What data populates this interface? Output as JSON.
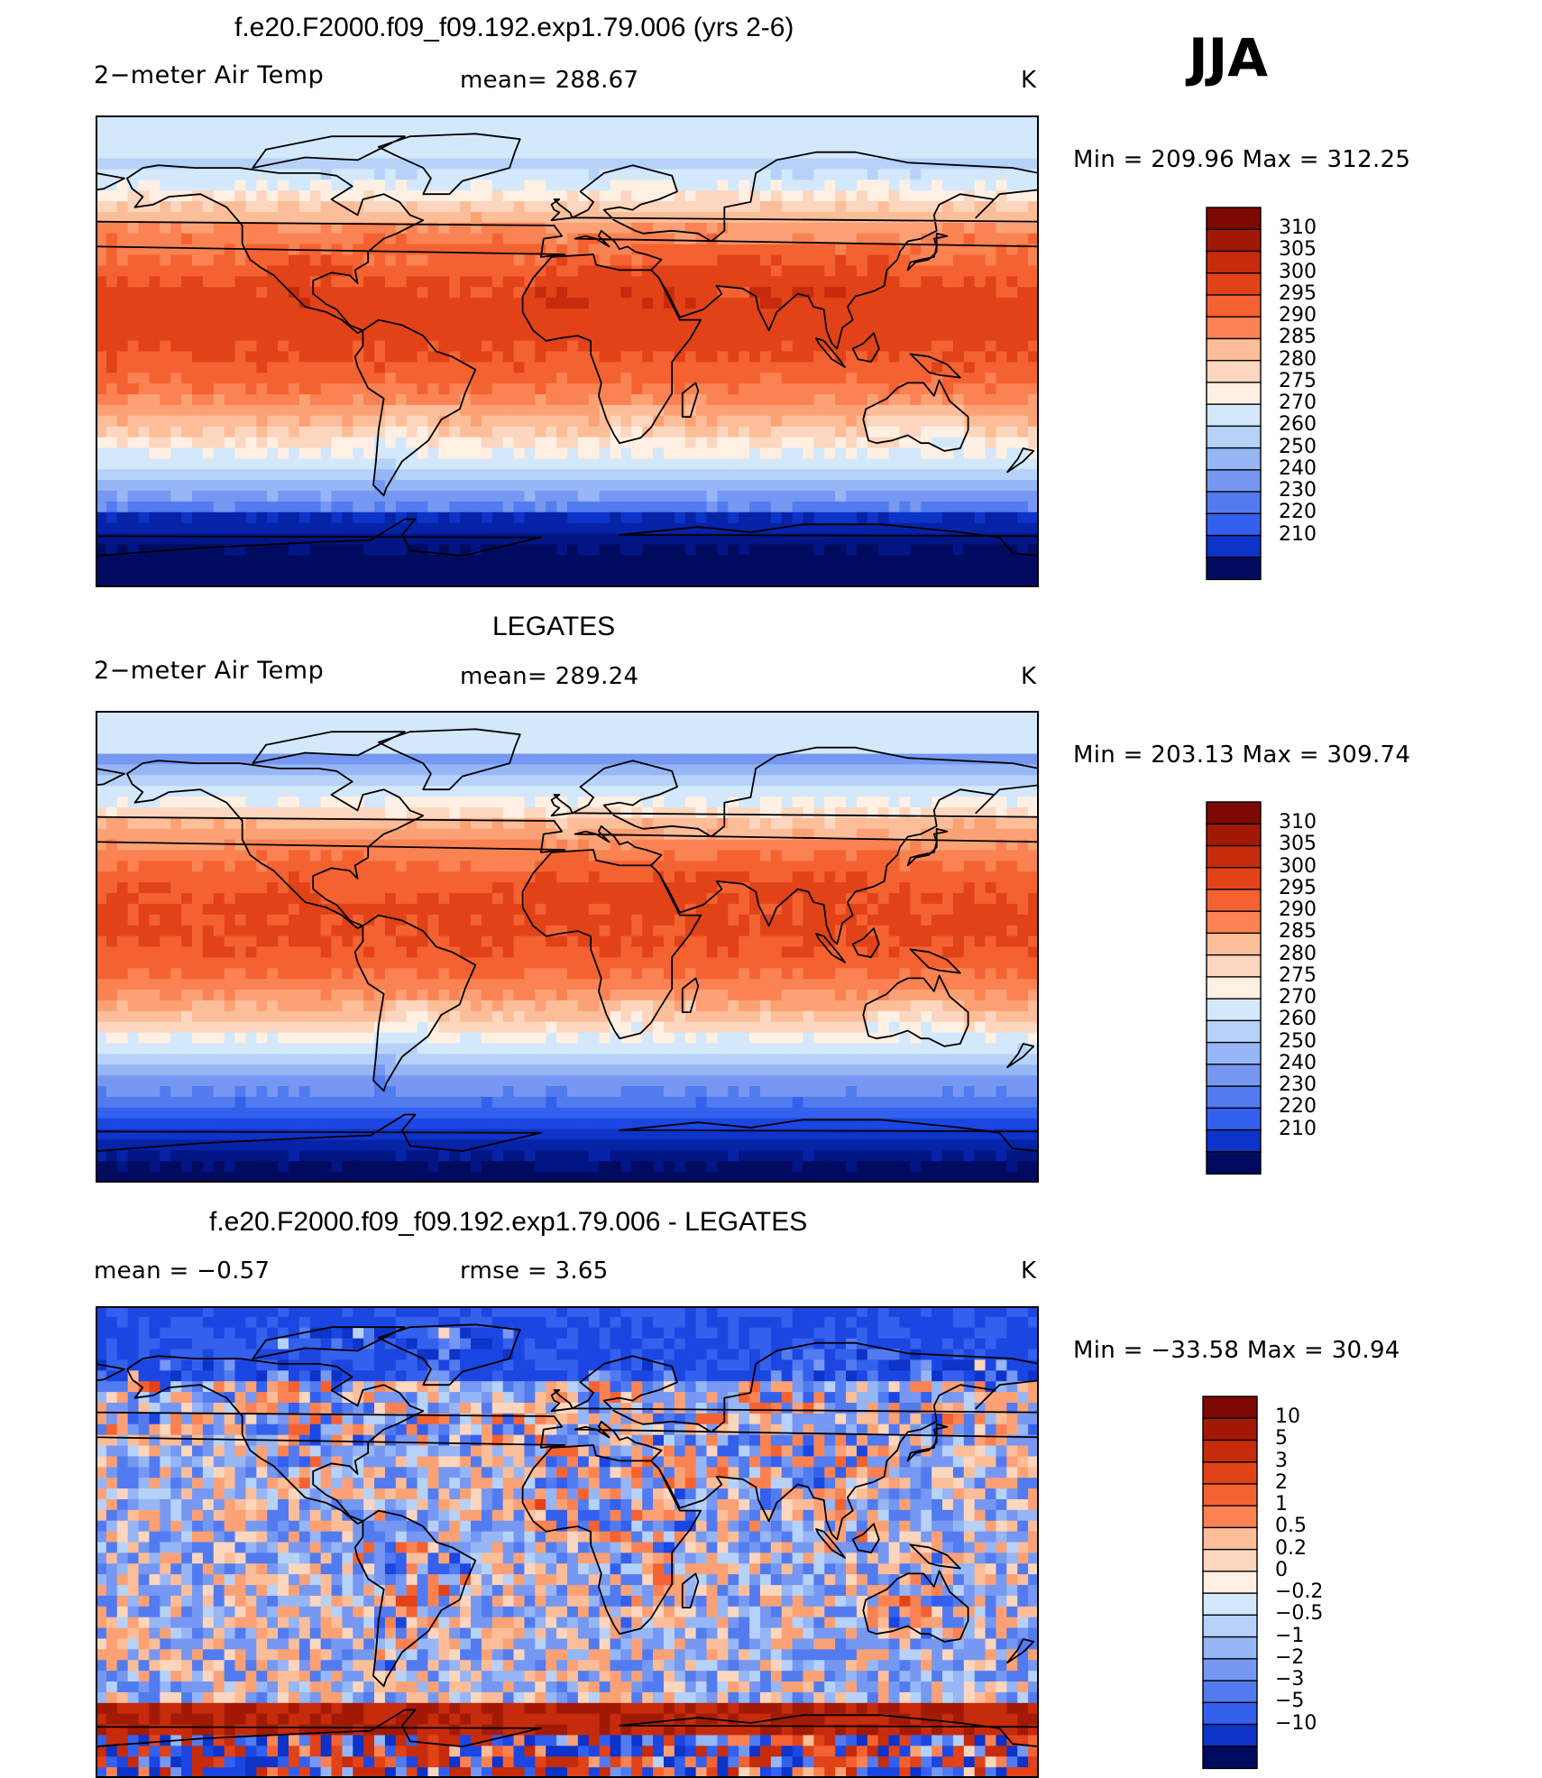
{
  "page_title": "JJA",
  "colors": {
    "warm10": [
      "#fff0e3",
      "#fcd6be",
      "#fcbd99",
      "#fba175",
      "#fa8253",
      "#f56231",
      "#e24218",
      "#c62b0c",
      "#a21a05",
      "#7d0a02"
    ],
    "cool11": [
      "#d3e8fb",
      "#b7d2f8",
      "#96b6f6",
      "#7698f2",
      "#537bf0",
      "#3460ee",
      "#1c46e1",
      "#0d33c8",
      "#0623a8",
      "#021585",
      "#000b60"
    ]
  },
  "chart_data": [
    {
      "type": "heatmap",
      "id": "model",
      "title": "f.e20.F2000.f09_f09.192.exp1.79.006 (yrs 2-6)",
      "left_label": "2−meter Air Temp",
      "center_label": "mean=  288.67",
      "units": "K",
      "min_max": "Min  =  209.96  Max  =  312.25",
      "field": "temp",
      "variant": "model",
      "levels": [
        "310",
        "305",
        "300",
        "295",
        "290",
        "285",
        "280",
        "275",
        "270",
        "260",
        "250",
        "240",
        "230",
        "220",
        "210"
      ],
      "level_colors": [
        "#7d0a02",
        "#a21a05",
        "#c62b0c",
        "#e24218",
        "#f56231",
        "#fa8253",
        "#fcbd99",
        "#fcd6be",
        "#fff0e3",
        "#d3e8fb",
        "#b7d2f8",
        "#96b6f6",
        "#7698f2",
        "#537bf0",
        "#3460ee",
        "#0d33c8",
        "#000b60"
      ]
    },
    {
      "type": "heatmap",
      "id": "obs",
      "title": "LEGATES",
      "left_label": "2−meter Air Temp",
      "center_label": "mean=  289.24",
      "units": "K",
      "min_max": "Min  =  203.13  Max  =  309.74",
      "field": "temp",
      "variant": "obs",
      "levels": [
        "310",
        "305",
        "300",
        "295",
        "290",
        "285",
        "280",
        "275",
        "270",
        "260",
        "250",
        "240",
        "230",
        "220",
        "210"
      ],
      "level_colors": [
        "#7d0a02",
        "#a21a05",
        "#c62b0c",
        "#e24218",
        "#f56231",
        "#fa8253",
        "#fcbd99",
        "#fcd6be",
        "#fff0e3",
        "#d3e8fb",
        "#b7d2f8",
        "#96b6f6",
        "#7698f2",
        "#537bf0",
        "#3460ee",
        "#0d33c8",
        "#000b60"
      ]
    },
    {
      "type": "heatmap",
      "id": "diff",
      "title": "f.e20.F2000.f09_f09.192.exp1.79.006 - LEGATES",
      "left_label": "mean  =    −0.57",
      "center_label": "rmse  =     3.65",
      "units": "K",
      "min_max": "Min  =  −33.58  Max  =    30.94",
      "field": "diff",
      "variant": "diff",
      "levels": [
        "10",
        "5",
        "3",
        "2",
        "1",
        "0.5",
        "0.2",
        "0",
        "−0.2",
        "−0.5",
        "−1",
        "−2",
        "−3",
        "−5",
        "−10"
      ],
      "level_colors": [
        "#7d0a02",
        "#a21a05",
        "#c62b0c",
        "#e24218",
        "#f56231",
        "#fa8253",
        "#fcbd99",
        "#fcd6be",
        "#fff0e3",
        "#d3e8fb",
        "#b7d2f8",
        "#96b6f6",
        "#7698f2",
        "#537bf0",
        "#3460ee",
        "#0d33c8",
        "#000b60"
      ]
    }
  ]
}
